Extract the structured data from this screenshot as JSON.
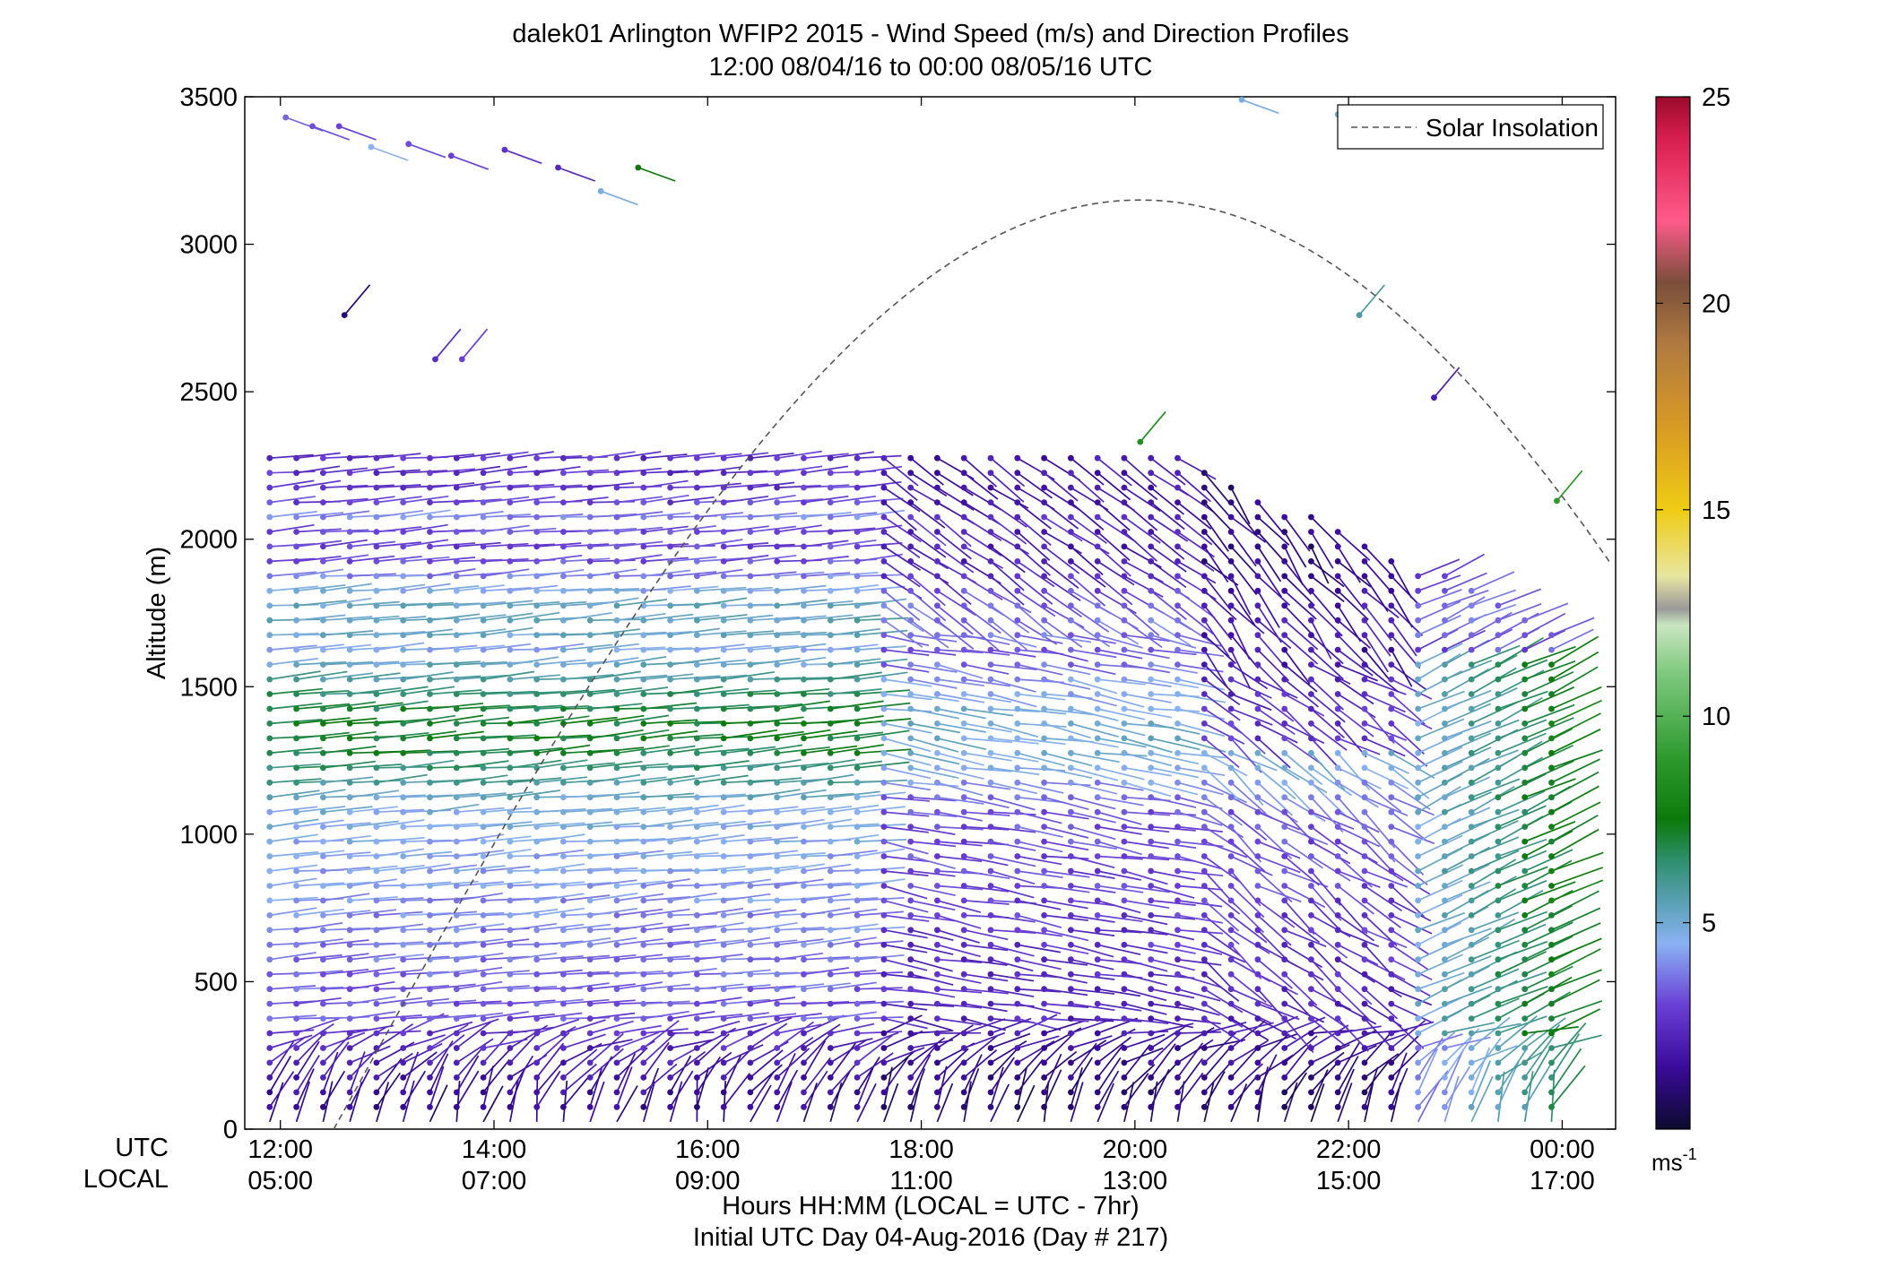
{
  "chart_data": {
    "type": "scatter",
    "title": "dalek01 Arlington WFIP2 2015 - Wind Speed (m/s) and Direction Profiles",
    "subtitle": "12:00 08/04/16 to 00:00 08/05/16  UTC",
    "ylabel": "Altitude (m)",
    "xlabel": "Hours HH:MM  (LOCAL = UTC - 7hr)",
    "xlabel2": "Initial UTC Day 04-Aug-2016 (Day # 217)",
    "ylim": [
      0,
      3500
    ],
    "xlim_hours": [
      11.6667,
      24.5
    ],
    "yticks": [
      "0",
      "500",
      "1000",
      "1500",
      "2000",
      "2500",
      "3000",
      "3500"
    ],
    "utc_label": "UTC",
    "local_label": "LOCAL",
    "xticks_utc": [
      "12:00",
      "14:00",
      "16:00",
      "18:00",
      "20:00",
      "22:00",
      "00:00"
    ],
    "xticks_local": [
      "05:00",
      "07:00",
      "09:00",
      "11:00",
      "13:00",
      "15:00",
      "17:00"
    ],
    "legend": {
      "label": "Solar Insolation",
      "placement": "top-right"
    },
    "colorbar": {
      "range": [
        0,
        25
      ],
      "ticks": [
        "5",
        "10",
        "15",
        "20",
        "25"
      ],
      "unit_label": "ms",
      "unit_exponent": "-1",
      "stops": [
        {
          "v": 0,
          "c": "#0b0b2e"
        },
        {
          "v": 1.5,
          "c": "#3a0a9a"
        },
        {
          "v": 3,
          "c": "#6a3fd6"
        },
        {
          "v": 4.5,
          "c": "#8ab2f2"
        },
        {
          "v": 5.5,
          "c": "#5aa0b4"
        },
        {
          "v": 6.5,
          "c": "#2e8f6e"
        },
        {
          "v": 7.5,
          "c": "#0b7a0b"
        },
        {
          "v": 9,
          "c": "#2e9a2e"
        },
        {
          "v": 11,
          "c": "#7cc87c"
        },
        {
          "v": 12.2,
          "c": "#c9e5c0"
        },
        {
          "v": 12.6,
          "c": "#9a9a9a"
        },
        {
          "v": 13.4,
          "c": "#e8e6a0"
        },
        {
          "v": 15,
          "c": "#efcc14"
        },
        {
          "v": 17,
          "c": "#d89a24"
        },
        {
          "v": 19,
          "c": "#b07a40"
        },
        {
          "v": 20.5,
          "c": "#7a4e3a"
        },
        {
          "v": 22,
          "c": "#ff5a8a"
        },
        {
          "v": 24,
          "c": "#d81e4e"
        },
        {
          "v": 25,
          "c": "#9a0a2a"
        }
      ]
    },
    "solar_insolation_curve": {
      "sunrise_utc_hour": 12.5,
      "sunset_utc_hour": 27.6,
      "peak_altitude": 3150,
      "peak_utc_hour": 20.05
    },
    "wind_profiles": {
      "profile_time_step_hours": 0.25,
      "first_profile_utc_hour": 11.9,
      "last_profile_utc_hour": 24.0,
      "altitude_step_m": 50,
      "profile_top_altitude_m": 2300,
      "speed_range_ms": [
        0.3,
        12
      ],
      "upper_level_barbs": [
        {
          "t": 12.05,
          "z": 3430,
          "s": 3.5
        },
        {
          "t": 12.3,
          "z": 3400,
          "s": 3.2
        },
        {
          "t": 12.55,
          "z": 3400,
          "s": 3.0
        },
        {
          "t": 12.85,
          "z": 3330,
          "s": 4.5
        },
        {
          "t": 13.2,
          "z": 3340,
          "s": 3.2
        },
        {
          "t": 13.6,
          "z": 3300,
          "s": 3.0
        },
        {
          "t": 14.1,
          "z": 3320,
          "s": 2.6
        },
        {
          "t": 14.6,
          "z": 3260,
          "s": 2.4
        },
        {
          "t": 15.0,
          "z": 3180,
          "s": 4.8
        },
        {
          "t": 15.35,
          "z": 3260,
          "s": 7.5
        },
        {
          "t": 12.6,
          "z": 2760,
          "s": 1.0
        },
        {
          "t": 13.45,
          "z": 2610,
          "s": 2.5
        },
        {
          "t": 13.7,
          "z": 2610,
          "s": 3.0
        },
        {
          "t": 20.05,
          "z": 2330,
          "s": 8.5
        },
        {
          "t": 21.0,
          "z": 3490,
          "s": 4.8
        },
        {
          "t": 21.9,
          "z": 3440,
          "s": 5.0
        },
        {
          "t": 22.1,
          "z": 2760,
          "s": 5.8
        },
        {
          "t": 22.8,
          "z": 2480,
          "s": 2.0
        },
        {
          "t": 23.95,
          "z": 2130,
          "s": 9.0
        }
      ]
    }
  }
}
